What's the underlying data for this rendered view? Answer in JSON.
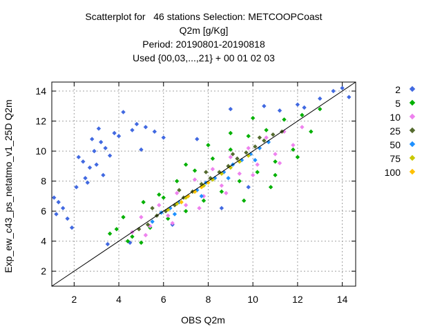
{
  "titles": {
    "line1": "Scatterplot for   46 stations Selection: METCOOPCoast",
    "line2": "Q2m [g/Kg]",
    "line3": "Period: 20190801-20190818",
    "line4": "Used {00,03,...,21} + 00 01 02 03"
  },
  "chart_data": {
    "type": "scatter",
    "xlabel": "OBS Q2m",
    "ylabel": "Exp_ew_c43_ps_netatmo_v1_25D Q2m",
    "xlim": [
      1,
      14.6
    ],
    "ylim": [
      1,
      14.6
    ],
    "xticks": [
      2,
      4,
      6,
      8,
      10,
      12,
      14
    ],
    "yticks": [
      2,
      4,
      6,
      8,
      10,
      12,
      14
    ],
    "grid": true,
    "reference_line": "y = x",
    "legend_position": "right",
    "series": [
      {
        "name": "2",
        "color": "#4169e1",
        "x": [
          1.1,
          1.2,
          1.3,
          1.5,
          1.7,
          1.9,
          2.1,
          2.2,
          2.4,
          2.5,
          2.6,
          2.8,
          2.9,
          3.1,
          3.2,
          3.4,
          3.6,
          3.8,
          4.0,
          3.0,
          3.3,
          2.7,
          5.2,
          5.6,
          6.0,
          5.0,
          4.8,
          4.2,
          4.6,
          12.3,
          13.0,
          13.6,
          14.0,
          14.3,
          4.5,
          6.4,
          7.5,
          9.0,
          10.5,
          11.2,
          12.0,
          8.6,
          9.8,
          3.5
        ],
        "y": [
          6.9,
          5.8,
          6.6,
          6.2,
          5.5,
          4.9,
          7.6,
          9.6,
          9.3,
          8.2,
          7.9,
          10.8,
          10.0,
          11.5,
          10.6,
          10.2,
          9.7,
          11.2,
          11.0,
          9.1,
          8.4,
          8.9,
          11.6,
          11.3,
          10.9,
          10.1,
          11.8,
          12.6,
          11.4,
          12.9,
          13.5,
          14.0,
          14.2,
          13.6,
          3.9,
          5.1,
          10.8,
          12.8,
          13.0,
          12.7,
          13.1,
          6.2,
          7.6,
          3.8
        ]
      },
      {
        "name": "5",
        "color": "#00b000",
        "x": [
          3.6,
          4.2,
          4.6,
          5.1,
          5.4,
          5.8,
          6.2,
          6.6,
          7.0,
          7.4,
          7.8,
          8.2,
          8.6,
          9.0,
          9.4,
          9.8,
          10.2,
          10.6,
          11.0,
          11.4,
          11.8,
          12.2,
          12.6,
          13.0,
          5.0,
          6.0,
          7.0,
          8.0,
          9.0,
          10.0,
          11.0,
          12.0,
          3.9,
          4.4,
          9.6,
          10.8
        ],
        "y": [
          4.5,
          5.6,
          4.3,
          6.6,
          4.9,
          7.1,
          5.5,
          8.0,
          6.0,
          8.7,
          6.7,
          9.5,
          7.3,
          10.1,
          8.0,
          11.0,
          8.6,
          11.4,
          9.3,
          12.1,
          10.1,
          12.4,
          11.3,
          12.8,
          3.9,
          6.9,
          9.1,
          10.4,
          11.2,
          12.2,
          8.4,
          9.6,
          4.8,
          4.0,
          6.7,
          7.6
        ],
        "shape": "diamond"
      },
      {
        "name": "10",
        "color": "#ee82ee",
        "x": [
          4.6,
          5.0,
          5.4,
          5.8,
          6.2,
          6.6,
          7.0,
          7.4,
          7.8,
          8.2,
          8.6,
          9.0,
          9.4,
          9.8,
          10.2,
          10.6,
          11.0,
          11.4,
          11.8,
          12.2,
          5.2,
          6.4,
          7.6,
          8.8,
          10.0,
          11.2
        ],
        "y": [
          4.6,
          5.6,
          5.0,
          6.4,
          5.7,
          7.2,
          6.4,
          8.1,
          7.0,
          8.8,
          7.7,
          9.6,
          8.5,
          10.2,
          9.1,
          10.9,
          9.8,
          11.3,
          10.4,
          11.6,
          4.4,
          5.2,
          6.2,
          7.2,
          8.4,
          9.2
        ]
      },
      {
        "name": "25",
        "color": "#556b2f",
        "x": [
          4.9,
          5.3,
          5.7,
          6.1,
          6.5,
          6.9,
          7.3,
          7.7,
          8.1,
          8.5,
          8.9,
          9.3,
          9.7,
          10.1,
          10.5,
          10.9,
          11.3,
          5.5,
          6.7,
          7.9,
          9.1,
          10.3
        ],
        "y": [
          4.8,
          5.1,
          5.7,
          6.0,
          6.4,
          6.9,
          7.3,
          7.8,
          8.2,
          8.6,
          9.0,
          9.5,
          9.9,
          10.3,
          10.7,
          11.1,
          11.3,
          6.2,
          7.4,
          8.6,
          9.8,
          10.9
        ]
      },
      {
        "name": "50",
        "color": "#1e90ff",
        "x": [
          5.5,
          5.9,
          6.3,
          6.7,
          7.1,
          7.5,
          7.9,
          8.3,
          8.7,
          9.1,
          9.5,
          9.9,
          10.3,
          10.7,
          6.5,
          7.7,
          8.9,
          10.1
        ],
        "y": [
          5.3,
          5.9,
          6.2,
          6.6,
          7.0,
          7.4,
          7.9,
          8.2,
          8.6,
          9.1,
          9.4,
          9.8,
          10.2,
          10.6,
          5.8,
          7.0,
          8.2,
          9.4
        ]
      },
      {
        "name": "75",
        "color": "#c8c800",
        "x": [
          6.2,
          6.6,
          7.0,
          7.4,
          7.8,
          8.2,
          8.6,
          9.0,
          9.4,
          9.8
        ],
        "y": [
          6.1,
          6.5,
          6.9,
          7.3,
          7.7,
          8.1,
          8.5,
          8.9,
          9.3,
          9.7
        ]
      },
      {
        "name": "100",
        "color": "#ffc000",
        "x": [
          6.8,
          7.1,
          7.4,
          7.7,
          8.0
        ],
        "y": [
          6.6,
          7.0,
          7.3,
          7.6,
          7.9
        ]
      }
    ]
  }
}
